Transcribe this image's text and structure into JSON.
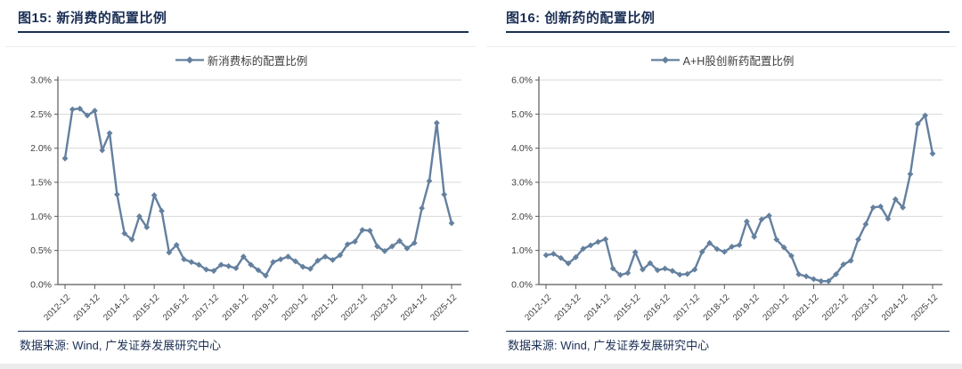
{
  "colors": {
    "accent_navy": "#1b2f55",
    "line": "#64809f",
    "grid": "#d9d9d9",
    "axis": "#595959",
    "tick_text": "#404040",
    "bottom_strip": "#ececec"
  },
  "panels": [
    {
      "title": "图15: 新消费的配置比例",
      "legend": "新消费标的配置比例",
      "source": "数据来源: Wind, 广发证券发展研究中心",
      "chart_data": {
        "type": "line",
        "title": "新消费的配置比例",
        "x_tick_labels": [
          "2012-12",
          "2013-12",
          "2014-12",
          "2015-12",
          "2016-12",
          "2017-12",
          "2018-12",
          "2019-12",
          "2020-12",
          "2021-12",
          "2022-12",
          "2023-12",
          "2024-12",
          "2025-12"
        ],
        "x_frequency": "quarterly",
        "series": [
          {
            "name": "新消费标的配置比例",
            "values": [
              1.85,
              2.57,
              2.58,
              2.48,
              2.55,
              1.97,
              2.22,
              1.32,
              0.75,
              0.66,
              1.0,
              0.84,
              1.31,
              1.08,
              0.47,
              0.58,
              0.37,
              0.33,
              0.29,
              0.22,
              0.2,
              0.29,
              0.27,
              0.24,
              0.41,
              0.29,
              0.21,
              0.13,
              0.33,
              0.37,
              0.41,
              0.34,
              0.26,
              0.23,
              0.35,
              0.41,
              0.36,
              0.43,
              0.59,
              0.63,
              0.8,
              0.79,
              0.56,
              0.49,
              0.56,
              0.64,
              0.53,
              0.61,
              1.12,
              1.52,
              2.37,
              1.32,
              0.9
            ]
          }
        ],
        "ylim": [
          0,
          3.0
        ],
        "y_tick_step": 0.5,
        "y_tick_format": "percent",
        "grid": "horizontal",
        "legend_position": "top",
        "line_color": "#64809f",
        "marker": "diamond"
      }
    },
    {
      "title": "图16: 创新药的配置比例",
      "legend": "A+H股创新药配置比例",
      "source": "数据来源: Wind, 广发证券发展研究中心",
      "chart_data": {
        "type": "line",
        "title": "创新药的配置比例",
        "x_tick_labels": [
          "2012-12",
          "2013-12",
          "2014-12",
          "2015-12",
          "2016-12",
          "2017-12",
          "2018-12",
          "2019-12",
          "2020-12",
          "2021-12",
          "2022-12",
          "2023-12",
          "2024-12",
          "2025-12"
        ],
        "x_frequency": "quarterly",
        "series": [
          {
            "name": "A+H股创新药配置比例",
            "values": [
              0.86,
              0.9,
              0.78,
              0.62,
              0.8,
              1.05,
              1.15,
              1.25,
              1.33,
              0.47,
              0.28,
              0.34,
              0.95,
              0.44,
              0.63,
              0.42,
              0.47,
              0.4,
              0.29,
              0.31,
              0.44,
              0.96,
              1.22,
              1.04,
              0.96,
              1.11,
              1.16,
              1.85,
              1.4,
              1.91,
              2.02,
              1.32,
              1.09,
              0.84,
              0.3,
              0.24,
              0.16,
              0.1,
              0.1,
              0.3,
              0.59,
              0.7,
              1.32,
              1.77,
              2.26,
              2.29,
              1.93,
              2.5,
              2.26,
              3.24,
              4.71,
              4.96,
              3.84
            ]
          }
        ],
        "ylim": [
          0,
          6.0
        ],
        "y_tick_step": 1.0,
        "y_tick_format": "percent",
        "grid": "horizontal",
        "legend_position": "top",
        "line_color": "#64809f",
        "marker": "diamond"
      }
    }
  ]
}
